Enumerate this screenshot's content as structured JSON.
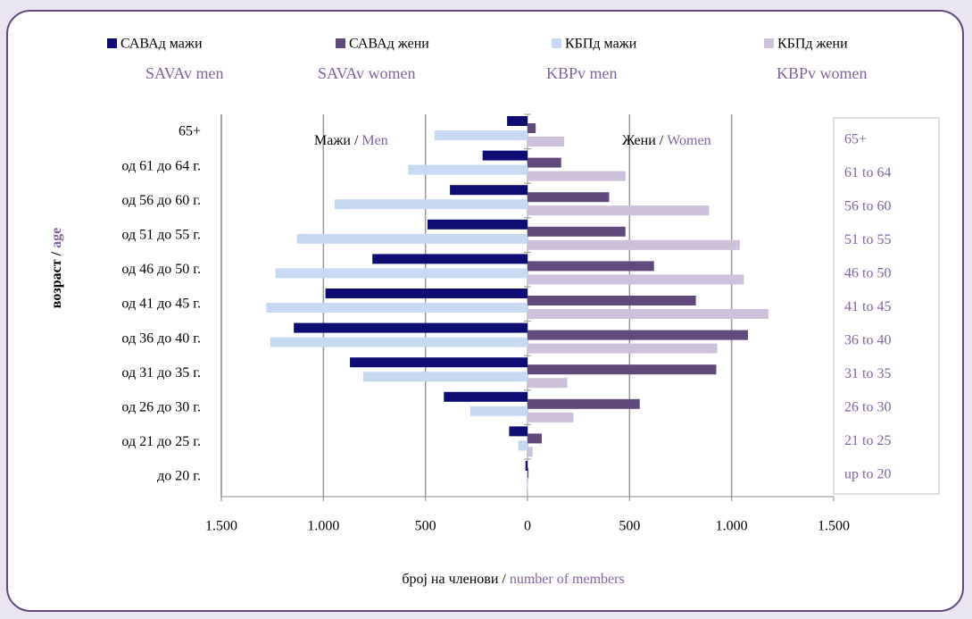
{
  "chart_data": {
    "type": "bar",
    "orientation": "horizontal",
    "categories": [
      "65+",
      "од 61 до 64 г.",
      "од 56 до 60 г.",
      "од 51 до 55 г.",
      "од 46 до 50 г.",
      "од 41 до 45 г.",
      "од 36 до 40 г.",
      "од 31 до 35 г.",
      "од 26 до 30 г.",
      "од 21 до 25 г.",
      "до 20 г."
    ],
    "categories_en": [
      "65+",
      "61 to 64",
      "56 to 60",
      "51 to 55",
      "46 to 50",
      "41 to 45",
      "36 to 40",
      "31 to 35",
      "26 to 30",
      "21 to 25",
      "up to 20"
    ],
    "series": [
      {
        "name": "САВАд мажи",
        "name_en": "SAVAv men",
        "color": "#0d0d73",
        "values": [
          -100,
          -220,
          -380,
          -490,
          -760,
          -990,
          -1145,
          -870,
          -410,
          -90,
          -10
        ]
      },
      {
        "name": "САВАд жени",
        "name_en": "SAVAv women",
        "color": "#604a7b",
        "values": [
          40,
          165,
          400,
          480,
          620,
          825,
          1080,
          925,
          550,
          70,
          5
        ]
      },
      {
        "name": "КБПд мажи",
        "name_en": "KBPv men",
        "color": "#c6d9f1",
        "values": [
          -455,
          -585,
          -945,
          -1130,
          -1235,
          -1280,
          -1260,
          -805,
          -280,
          -45,
          -5
        ]
      },
      {
        "name": "КБПд жени",
        "name_en": "KBPv women",
        "color": "#ccc0da",
        "values": [
          180,
          480,
          890,
          1040,
          1060,
          1180,
          930,
          195,
          225,
          25,
          2
        ]
      }
    ],
    "xlim": [
      -1500,
      1500
    ],
    "xticks": [
      {
        "value": -1500,
        "label": "1.500"
      },
      {
        "value": -1000,
        "label": "1.000"
      },
      {
        "value": -500,
        "label": "500"
      },
      0,
      500,
      {
        "value": 1000,
        "label": "1.000"
      },
      {
        "value": 1500,
        "label": "1.500"
      }
    ],
    "grid": true,
    "xlabel": {
      "mk": "број на членови",
      "separator": "/",
      "en": "number of members"
    },
    "ylabel": {
      "mk": "возраст",
      "separator": "/",
      "en": "age"
    },
    "annotations": [
      {
        "mk": "Мажи",
        "separator": "/",
        "en": "Men"
      },
      {
        "mk": "Жени",
        "separator": "/",
        "en": "Women"
      }
    ]
  }
}
